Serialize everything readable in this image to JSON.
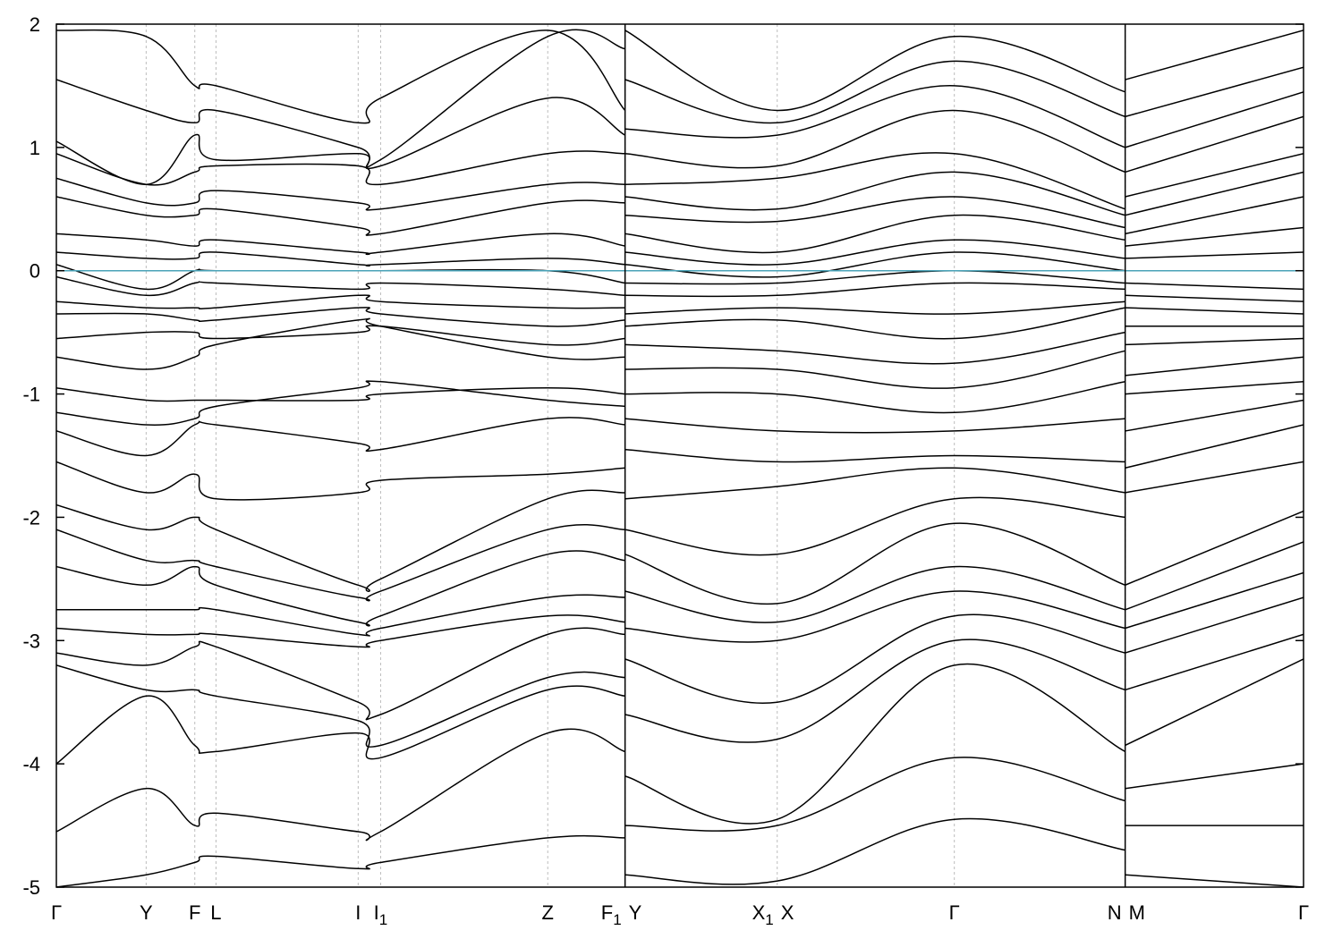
{
  "chart_data": {
    "type": "line",
    "title": "",
    "xlabel": "",
    "ylabel": "",
    "ylim": [
      -5,
      2
    ],
    "yticks": [
      2,
      1,
      0,
      -1,
      -2,
      -3,
      -4,
      -5
    ],
    "grid": "dashed vertical lines at high-symmetry points",
    "fermi_level": 0,
    "path_length": 10.0,
    "kpoints": [
      {
        "label": "Γ",
        "sub": "",
        "x": 0.0
      },
      {
        "label": "Y",
        "sub": "",
        "x": 0.72
      },
      {
        "label": "F",
        "sub": "",
        "x": 1.11
      },
      {
        "label": "L",
        "sub": "",
        "x": 1.28
      },
      {
        "label": "I",
        "sub": "",
        "x": 2.42
      },
      {
        "label": "I",
        "sub": "1",
        "x": 2.6
      },
      {
        "label": "Z",
        "sub": "",
        "x": 3.94
      },
      {
        "label": "F",
        "sub": "1",
        "x": 4.56
      },
      {
        "label": "Y",
        "sub": "",
        "x": 4.56
      },
      {
        "label": "X",
        "sub": "1",
        "x": 5.78
      },
      {
        "label": "X",
        "sub": "",
        "x": 5.78
      },
      {
        "label": "Γ",
        "sub": "",
        "x": 7.2
      },
      {
        "label": "N",
        "sub": "",
        "x": 8.57
      },
      {
        "label": "M",
        "sub": "",
        "x": 8.57
      },
      {
        "label": "Γ",
        "sub": "",
        "x": 10.0
      }
    ],
    "vertical_lines": [
      0.72,
      1.11,
      1.28,
      2.42,
      2.6,
      3.94,
      4.56,
      5.78,
      7.2,
      8.57
    ],
    "segment_breaks": [
      4.56,
      8.57
    ],
    "segments": [
      {
        "x": [
          0.0,
          0.72,
          1.11,
          1.28,
          2.42,
          2.6,
          3.94,
          4.56
        ],
        "bands": [
          [
            1.95,
            1.9,
            1.5,
            1.5,
            1.2,
            1.4,
            1.95,
            1.3
          ],
          [
            1.55,
            1.3,
            1.2,
            1.3,
            1.0,
            0.9,
            1.9,
            1.8
          ],
          [
            1.05,
            0.7,
            1.1,
            0.9,
            0.95,
            0.85,
            1.4,
            1.1
          ],
          [
            0.95,
            0.7,
            0.8,
            0.85,
            0.85,
            0.7,
            0.95,
            0.95
          ],
          [
            0.75,
            0.55,
            0.55,
            0.65,
            0.55,
            0.5,
            0.7,
            0.7
          ],
          [
            0.6,
            0.45,
            0.45,
            0.5,
            0.35,
            0.3,
            0.55,
            0.55
          ],
          [
            0.3,
            0.25,
            0.2,
            0.25,
            0.15,
            0.15,
            0.3,
            0.2
          ],
          [
            0.15,
            0.1,
            0.1,
            0.15,
            0.05,
            0.05,
            0.1,
            0.05
          ],
          [
            0.05,
            -0.15,
            0.0,
            0.0,
            0.0,
            0.0,
            0.0,
            -0.1
          ],
          [
            -0.05,
            -0.2,
            -0.1,
            -0.1,
            -0.15,
            -0.1,
            -0.15,
            -0.2
          ],
          [
            -0.25,
            -0.3,
            -0.3,
            -0.3,
            -0.2,
            -0.25,
            -0.3,
            -0.3
          ],
          [
            -0.35,
            -0.35,
            -0.4,
            -0.4,
            -0.3,
            -0.35,
            -0.45,
            -0.4
          ],
          [
            -0.55,
            -0.5,
            -0.5,
            -0.55,
            -0.5,
            -0.45,
            -0.6,
            -0.55
          ],
          [
            -0.7,
            -0.8,
            -0.7,
            -0.6,
            -0.4,
            -0.45,
            -0.7,
            -0.7
          ],
          [
            -0.95,
            -1.05,
            -1.05,
            -1.05,
            -1.05,
            -1.0,
            -0.95,
            -1.0
          ],
          [
            -1.15,
            -1.25,
            -1.2,
            -1.1,
            -0.95,
            -0.9,
            -1.05,
            -1.1
          ],
          [
            -1.3,
            -1.5,
            -1.25,
            -1.25,
            -1.4,
            -1.45,
            -1.2,
            -1.25
          ],
          [
            -1.55,
            -1.8,
            -1.65,
            -1.85,
            -1.8,
            -1.7,
            -1.65,
            -1.6
          ],
          [
            -1.9,
            -2.1,
            -2.0,
            -2.1,
            -2.55,
            -2.5,
            -1.85,
            -1.8
          ],
          [
            -2.1,
            -2.35,
            -2.35,
            -2.4,
            -2.65,
            -2.6,
            -2.1,
            -2.1
          ],
          [
            -2.4,
            -2.55,
            -2.4,
            -2.55,
            -2.85,
            -2.8,
            -2.3,
            -2.35
          ],
          [
            -2.75,
            -2.75,
            -2.75,
            -2.75,
            -2.95,
            -2.9,
            -2.65,
            -2.65
          ],
          [
            -2.9,
            -2.95,
            -2.95,
            -2.95,
            -3.05,
            -3.0,
            -2.8,
            -2.85
          ],
          [
            -3.1,
            -3.2,
            -3.05,
            -3.05,
            -3.5,
            -3.6,
            -2.95,
            -2.95
          ],
          [
            -3.2,
            -3.4,
            -3.4,
            -3.45,
            -3.65,
            -3.85,
            -3.3,
            -3.3
          ],
          [
            -4.0,
            -3.45,
            -3.85,
            -3.9,
            -3.75,
            -3.95,
            -3.4,
            -3.45
          ],
          [
            -4.55,
            -4.2,
            -4.5,
            -4.4,
            -4.55,
            -4.55,
            -3.75,
            -3.9
          ],
          [
            -5.0,
            -4.9,
            -4.8,
            -4.75,
            -4.85,
            -4.8,
            -4.6,
            -4.6
          ]
        ]
      },
      {
        "x": [
          4.56,
          5.78,
          7.2,
          8.57
        ],
        "bands": [
          [
            1.95,
            1.3,
            1.9,
            1.45
          ],
          [
            1.55,
            1.2,
            1.7,
            1.25
          ],
          [
            1.15,
            1.1,
            1.5,
            1.0
          ],
          [
            0.95,
            0.85,
            1.3,
            0.8
          ],
          [
            0.7,
            0.75,
            0.95,
            0.5
          ],
          [
            0.6,
            0.5,
            0.8,
            0.45
          ],
          [
            0.45,
            0.4,
            0.6,
            0.35
          ],
          [
            0.3,
            0.15,
            0.45,
            0.25
          ],
          [
            0.15,
            0.05,
            0.25,
            0.1
          ],
          [
            0.05,
            -0.05,
            0.15,
            0.0
          ],
          [
            -0.1,
            -0.1,
            0.0,
            -0.1
          ],
          [
            -0.2,
            -0.2,
            -0.1,
            -0.15
          ],
          [
            -0.35,
            -0.3,
            -0.35,
            -0.25
          ],
          [
            -0.45,
            -0.4,
            -0.55,
            -0.3
          ],
          [
            -0.6,
            -0.65,
            -0.75,
            -0.5
          ],
          [
            -0.8,
            -0.8,
            -0.95,
            -0.65
          ],
          [
            -1.0,
            -1.0,
            -1.15,
            -0.9
          ],
          [
            -1.2,
            -1.3,
            -1.3,
            -1.2
          ],
          [
            -1.45,
            -1.55,
            -1.5,
            -1.55
          ],
          [
            -1.85,
            -1.75,
            -1.6,
            -1.8
          ],
          [
            -2.1,
            -2.3,
            -1.85,
            -2.0
          ],
          [
            -2.3,
            -2.7,
            -2.05,
            -2.55
          ],
          [
            -2.6,
            -2.85,
            -2.4,
            -2.75
          ],
          [
            -2.9,
            -3.0,
            -2.6,
            -2.9
          ],
          [
            -3.15,
            -3.5,
            -2.8,
            -3.1
          ],
          [
            -3.6,
            -3.8,
            -3.0,
            -3.4
          ],
          [
            -4.1,
            -4.45,
            -3.2,
            -3.9
          ],
          [
            -4.5,
            -4.5,
            -3.95,
            -4.3
          ],
          [
            -4.9,
            -4.95,
            -4.45,
            -4.7
          ]
        ]
      },
      {
        "x": [
          8.57,
          10.0
        ],
        "bands": [
          [
            1.55,
            1.95
          ],
          [
            1.25,
            1.65
          ],
          [
            1.0,
            1.45
          ],
          [
            0.8,
            1.25
          ],
          [
            0.6,
            0.95
          ],
          [
            0.45,
            0.8
          ],
          [
            0.3,
            0.6
          ],
          [
            0.2,
            0.35
          ],
          [
            0.1,
            0.15
          ],
          [
            0.0,
            0.0
          ],
          [
            -0.1,
            -0.15
          ],
          [
            -0.2,
            -0.25
          ],
          [
            -0.3,
            -0.35
          ],
          [
            -0.45,
            -0.45
          ],
          [
            -0.6,
            -0.55
          ],
          [
            -0.85,
            -0.7
          ],
          [
            -1.0,
            -0.9
          ],
          [
            -1.3,
            -1.05
          ],
          [
            -1.6,
            -1.25
          ],
          [
            -1.8,
            -1.55
          ],
          [
            -2.55,
            -1.95
          ],
          [
            -2.75,
            -2.2
          ],
          [
            -2.9,
            -2.45
          ],
          [
            -3.1,
            -2.65
          ],
          [
            -3.4,
            -2.95
          ],
          [
            -3.85,
            -3.15
          ],
          [
            -4.2,
            -4.0
          ],
          [
            -4.5,
            -4.5
          ],
          [
            -4.9,
            -5.0
          ]
        ]
      }
    ]
  }
}
